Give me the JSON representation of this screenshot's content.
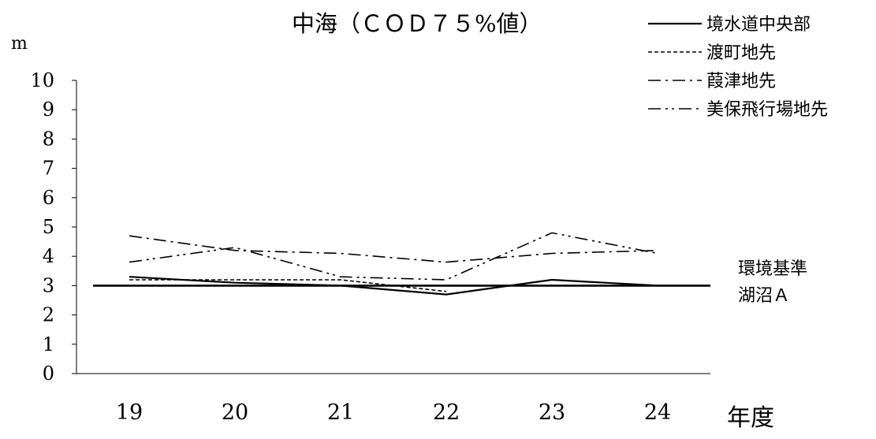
{
  "chart_data": {
    "type": "line",
    "title": "中海（ＣＯＤ７５%値）",
    "ylabel": "m",
    "xlabel": "年度",
    "categories": [
      "19",
      "20",
      "21",
      "22",
      "23",
      "24"
    ],
    "ylim": [
      0,
      10
    ],
    "yticks": [
      "0",
      "1",
      "2",
      "3",
      "4",
      "5",
      "6",
      "7",
      "8",
      "9",
      "10"
    ],
    "grid": false,
    "legend": "top-right",
    "series": [
      {
        "name": "境水道中央部",
        "values": [
          3.3,
          3.1,
          3.0,
          2.7,
          3.2,
          3.0
        ],
        "dash": "solid"
      },
      {
        "name": "渡町地先",
        "values": [
          3.2,
          3.2,
          3.2,
          2.8,
          null,
          null
        ],
        "dash": "dashed"
      },
      {
        "name": "葭津地先",
        "values": [
          4.7,
          4.2,
          4.1,
          3.8,
          4.1,
          4.2
        ],
        "dash": "dashdot"
      },
      {
        "name": "美保飛行場地先",
        "values": [
          3.8,
          4.3,
          3.3,
          3.2,
          4.8,
          4.1
        ],
        "dash": "dashdotdot"
      }
    ],
    "reference_line": {
      "value": 3,
      "label_lines": [
        "環境基準",
        "湖沼Ａ"
      ]
    }
  }
}
